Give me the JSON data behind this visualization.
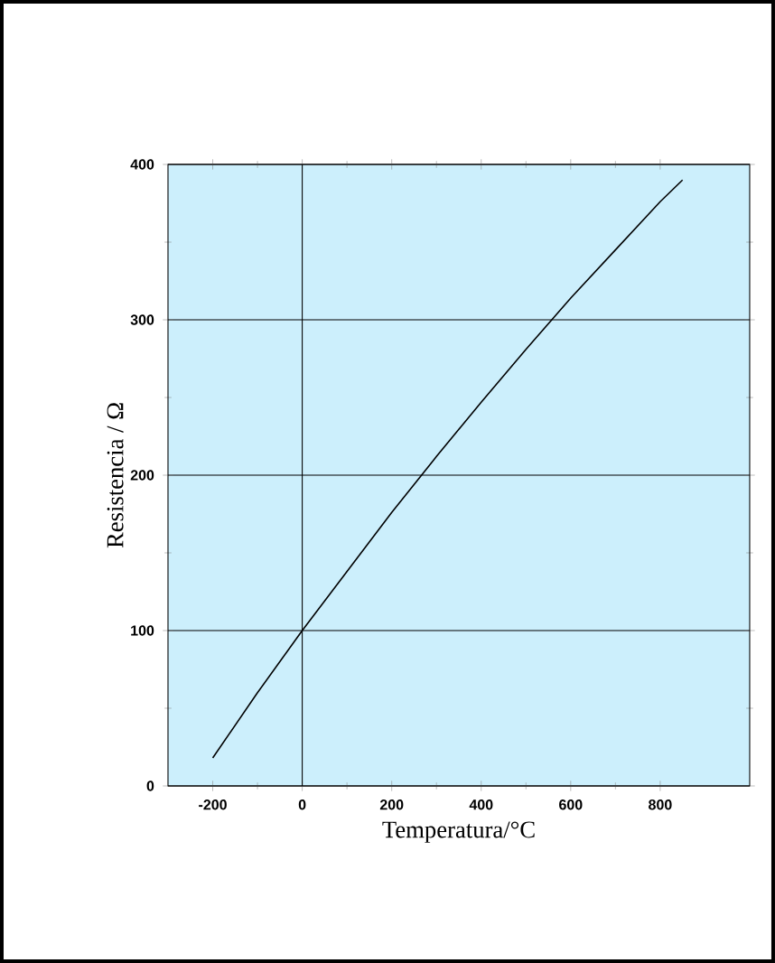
{
  "chart_data": {
    "type": "line",
    "xlabel": "Temperatura/°C",
    "ylabel": "Resistencia / Ω",
    "x": [
      -200,
      -100,
      0,
      100,
      200,
      300,
      400,
      500,
      600,
      700,
      800,
      850
    ],
    "series": [
      {
        "color": "#000000",
        "values": [
          18,
          60,
          100,
          138,
          176,
          212,
          247,
          281,
          314,
          345,
          376,
          390
        ]
      }
    ],
    "xlim": [
      -300,
      1000
    ],
    "ylim": [
      0,
      400
    ],
    "xticks": [
      -200,
      0,
      200,
      400,
      600,
      800
    ],
    "yticks": [
      0,
      100,
      200,
      300,
      400
    ],
    "grid": "y",
    "ref_lines": [
      {
        "axis": "x",
        "value": 0,
        "color": "#000000"
      }
    ],
    "marker": "none",
    "line_style": "solid"
  }
}
